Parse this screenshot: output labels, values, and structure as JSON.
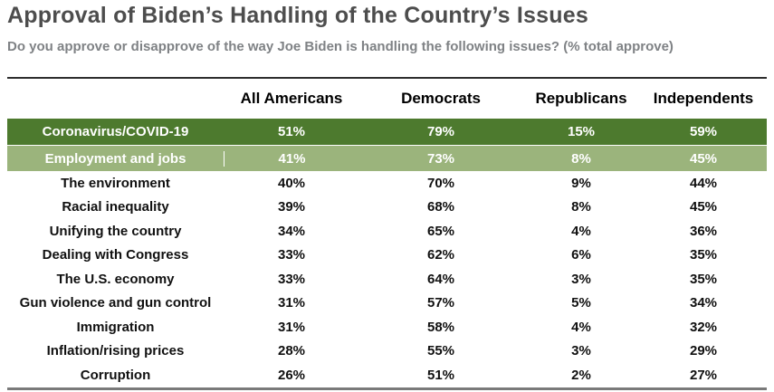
{
  "header": {
    "title": "Approval of Biden’s Handling of the Country’s Issues",
    "subtitle": "Do you approve or disapprove of the way Joe Biden is handling the following issues? (% total approve)"
  },
  "table": {
    "columns": [
      "All Americans",
      "Democrats",
      "Republicans",
      "Independents"
    ],
    "rows": [
      {
        "label": "Coronavirus/COVID-19",
        "values": [
          "51%",
          "79%",
          "15%",
          "59%"
        ],
        "highlight": "dark"
      },
      {
        "label": "Employment and jobs",
        "values": [
          "41%",
          "73%",
          "8%",
          "45%"
        ],
        "highlight": "light"
      },
      {
        "label": "The environment",
        "values": [
          "40%",
          "70%",
          "9%",
          "44%"
        ],
        "highlight": "none"
      },
      {
        "label": "Racial inequality",
        "values": [
          "39%",
          "68%",
          "8%",
          "45%"
        ],
        "highlight": "none"
      },
      {
        "label": "Unifying the country",
        "values": [
          "34%",
          "65%",
          "4%",
          "36%"
        ],
        "highlight": "none"
      },
      {
        "label": "Dealing with Congress",
        "values": [
          "33%",
          "62%",
          "6%",
          "35%"
        ],
        "highlight": "none"
      },
      {
        "label": "The U.S. economy",
        "values": [
          "33%",
          "64%",
          "3%",
          "35%"
        ],
        "highlight": "none"
      },
      {
        "label": "Gun violence and gun control",
        "values": [
          "31%",
          "57%",
          "5%",
          "34%"
        ],
        "highlight": "none"
      },
      {
        "label": "Immigration",
        "values": [
          "31%",
          "58%",
          "4%",
          "32%"
        ],
        "highlight": "none"
      },
      {
        "label": "Inflation/rising prices",
        "values": [
          "28%",
          "55%",
          "3%",
          "29%"
        ],
        "highlight": "none"
      },
      {
        "label": "Corruption",
        "values": [
          "26%",
          "51%",
          "2%",
          "27%"
        ],
        "highlight": "none"
      }
    ]
  },
  "colors": {
    "title": "#4d4d4d",
    "subtitle": "#7f8285",
    "highlight_dark_green": "#4d7a2e",
    "highlight_light_green": "#9bb47c",
    "header_text": "#000000",
    "bottom_border": "#7a7a7a",
    "highlight_text": "#ffffff"
  },
  "chart_data": {
    "type": "table",
    "title": "Approval of Biden’s Handling of the Country’s Issues",
    "subtitle": "Do you approve or disapprove of the way Joe Biden is handling the following issues? (% total approve)",
    "unit": "% total approve",
    "categories": [
      "Coronavirus/COVID-19",
      "Employment and jobs",
      "The environment",
      "Racial inequality",
      "Unifying the country",
      "Dealing with Congress",
      "The U.S. economy",
      "Gun violence and gun control",
      "Immigration",
      "Inflation/rising prices",
      "Corruption"
    ],
    "series": [
      {
        "name": "All Americans",
        "values": [
          51,
          41,
          40,
          39,
          34,
          33,
          33,
          31,
          31,
          28,
          26
        ]
      },
      {
        "name": "Democrats",
        "values": [
          79,
          73,
          70,
          68,
          65,
          62,
          64,
          57,
          58,
          55,
          51
        ]
      },
      {
        "name": "Republicans",
        "values": [
          15,
          8,
          9,
          8,
          4,
          6,
          3,
          5,
          4,
          3,
          2
        ]
      },
      {
        "name": "Independents",
        "values": [
          59,
          45,
          44,
          45,
          36,
          35,
          35,
          34,
          32,
          29,
          27
        ]
      }
    ],
    "highlighted_rows": [
      "Coronavirus/COVID-19",
      "Employment and jobs"
    ]
  }
}
